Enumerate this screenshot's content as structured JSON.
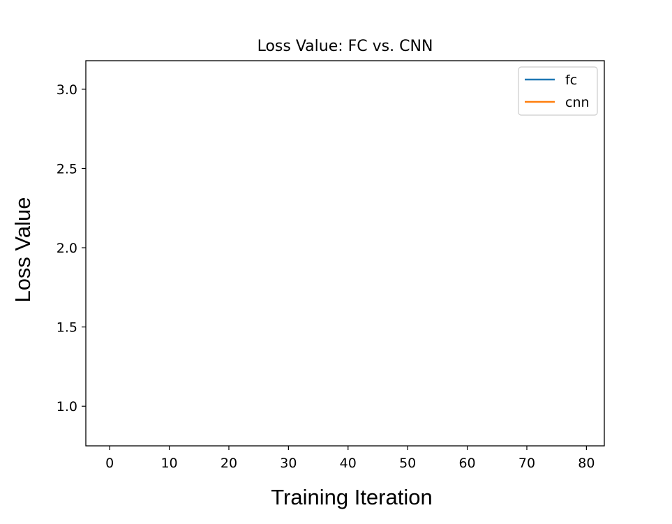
{
  "chart_data": {
    "type": "line",
    "title": "Loss Value: FC vs. CNN",
    "xlabel": "Training Iteration",
    "ylabel": "Loss Value",
    "xlim": [
      -4,
      83
    ],
    "ylim": [
      0.75,
      3.18
    ],
    "xticks": [
      0,
      10,
      20,
      30,
      40,
      50,
      60,
      70,
      80
    ],
    "xtick_labels": [
      "0",
      "10",
      "20",
      "30",
      "40",
      "50",
      "60",
      "70",
      "80"
    ],
    "yticks": [
      1.0,
      1.5,
      2.0,
      2.5,
      3.0
    ],
    "ytick_labels": [
      "1.0",
      "1.5",
      "2.0",
      "2.5",
      "3.0"
    ],
    "grid": false,
    "legend_position": "top-right",
    "series": [
      {
        "name": "fc",
        "color": "#1f77b4",
        "x": [],
        "y": []
      },
      {
        "name": "cnn",
        "color": "#ff7f0e",
        "x": [],
        "y": []
      }
    ]
  }
}
